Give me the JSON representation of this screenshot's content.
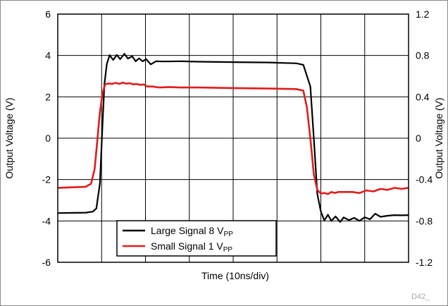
{
  "chart_data": {
    "type": "line",
    "title": "",
    "xlabel": "Time (10ns/div)",
    "ylabel": "Output Voltage (V)",
    "y2label": "Output Voltage (V)",
    "xlim": [
      0,
      10
    ],
    "ylim": [
      -6,
      6
    ],
    "y2lim": [
      -1.2,
      1.2
    ],
    "yticks": [
      "6",
      "4",
      "2",
      "0",
      "-2",
      "-4",
      "-6"
    ],
    "y2ticks": [
      "1.2",
      "0.8",
      "0.4",
      "0",
      "-0.4",
      "-0.8",
      "-1.2"
    ],
    "grid": true,
    "legend_position": "bottom-left",
    "figure_id": "D42_",
    "series": [
      {
        "name": "Large Signal 8 V",
        "name_sub": "PP",
        "color": "#000000",
        "axis": "left",
        "x": [
          0,
          0.8,
          1.0,
          1.1,
          1.2,
          1.27,
          1.33,
          1.4,
          1.48,
          1.58,
          1.68,
          1.78,
          1.9,
          2.0,
          2.12,
          2.22,
          2.32,
          2.42,
          2.52,
          2.65,
          2.8,
          3.0,
          3.5,
          4.0,
          5.0,
          6.0,
          6.8,
          7.0,
          7.2,
          7.3,
          7.4,
          7.5,
          7.6,
          7.7,
          7.8,
          7.92,
          8.05,
          8.15,
          8.3,
          8.45,
          8.6,
          8.75,
          8.9,
          9.05,
          9.2,
          9.4,
          9.6,
          9.8,
          10
        ],
        "y": [
          -3.62,
          -3.6,
          -3.55,
          -3.4,
          -2.2,
          0.4,
          2.6,
          3.6,
          4.02,
          3.78,
          4.03,
          3.82,
          4.08,
          3.85,
          3.96,
          3.72,
          3.86,
          3.72,
          3.82,
          3.57,
          3.72,
          3.71,
          3.72,
          3.7,
          3.68,
          3.66,
          3.62,
          3.55,
          2.5,
          0.0,
          -2.7,
          -3.55,
          -3.98,
          -3.7,
          -4.0,
          -3.78,
          -4.05,
          -3.83,
          -3.96,
          -3.85,
          -4.0,
          -3.82,
          -3.92,
          -3.65,
          -3.8,
          -3.75,
          -3.72,
          -3.73,
          -3.72
        ]
      },
      {
        "name": "Small Signal 1 V",
        "name_sub": "PP",
        "color": "#e31b1b",
        "axis": "right",
        "x": [
          0,
          0.8,
          0.95,
          1.05,
          1.12,
          1.2,
          1.28,
          1.35,
          1.45,
          1.55,
          1.65,
          1.75,
          1.85,
          1.95,
          2.05,
          2.15,
          2.25,
          2.35,
          2.45,
          2.55,
          2.7,
          2.9,
          3.2,
          3.5,
          4.0,
          5.0,
          6.0,
          6.8,
          7.0,
          7.1,
          7.2,
          7.3,
          7.4,
          7.5,
          7.6,
          7.7,
          7.8,
          7.9,
          8.0,
          8.2,
          8.4,
          8.6,
          8.8,
          9.0,
          9.2,
          9.4,
          9.6,
          9.8,
          10
        ],
        "y": [
          -0.48,
          -0.47,
          -0.44,
          -0.3,
          -0.05,
          0.25,
          0.44,
          0.52,
          0.53,
          0.525,
          0.535,
          0.525,
          0.538,
          0.528,
          0.532,
          0.52,
          0.525,
          0.515,
          0.52,
          0.5,
          0.5,
          0.49,
          0.495,
          0.49,
          0.49,
          0.485,
          0.48,
          0.475,
          0.46,
          0.3,
          0.0,
          -0.35,
          -0.5,
          -0.535,
          -0.53,
          -0.54,
          -0.52,
          -0.53,
          -0.52,
          -0.52,
          -0.52,
          -0.53,
          -0.505,
          -0.515,
          -0.49,
          -0.5,
          -0.48,
          -0.49,
          -0.48
        ]
      }
    ]
  }
}
